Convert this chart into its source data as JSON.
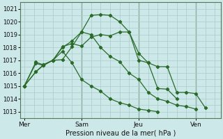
{
  "background_color": "#cce8e8",
  "grid_color": "#aacccc",
  "line_color": "#2a6b2a",
  "xlabel": "Pression niveau de la mer( hPa )",
  "ylim": [
    1012.5,
    1021.5
  ],
  "yticks": [
    1013,
    1014,
    1015,
    1016,
    1017,
    1018,
    1019,
    1020,
    1021
  ],
  "day_labels": [
    "Mer",
    "Sam",
    "Jeu",
    "Ven"
  ],
  "day_positions": [
    0,
    3,
    6,
    9
  ],
  "xlim": [
    -0.2,
    10.3
  ],
  "series": [
    {
      "x": [
        0,
        0.6,
        1.0,
        1.5,
        2.0,
        2.5,
        3.0,
        3.5,
        4.0,
        4.5,
        5.0,
        5.5,
        6.0,
        6.5,
        7.0,
        7.5,
        8.0,
        8.5,
        9.0,
        9.5,
        10.0
      ],
      "y": [
        1015.0,
        1016.1,
        1016.65,
        1017.0,
        1017.05,
        1018.05,
        1019.2,
        1020.5,
        1020.55,
        1020.5,
        1020.0,
        1019.2,
        1017.0,
        1016.8,
        1014.8,
        1014.75,
        1014.0,
        null,
        null,
        null,
        null
      ]
    },
    {
      "x": [
        0,
        0.6,
        1.0,
        1.5,
        2.0,
        2.5,
        3.0,
        3.5,
        4.0,
        4.5,
        5.0,
        5.5,
        6.0,
        6.5,
        7.0,
        7.5,
        8.0,
        8.5,
        9.0,
        9.5,
        10.0
      ],
      "y": [
        1015.0,
        1016.85,
        1016.65,
        1017.0,
        1018.05,
        1018.3,
        1018.1,
        1018.8,
        1019.0,
        1018.9,
        1019.2,
        1019.2,
        1017.55,
        1016.8,
        1016.5,
        1016.5,
        1014.5,
        1014.5,
        1014.4,
        1013.3,
        null
      ]
    },
    {
      "x": [
        0,
        0.6,
        1.0,
        1.5,
        2.0,
        2.5,
        3.0,
        3.5,
        4.0,
        4.5,
        5.0,
        5.5,
        6.0,
        6.5,
        7.0,
        7.5,
        8.0,
        8.5,
        9.0,
        9.5,
        10.0
      ],
      "y": [
        1015.0,
        1016.75,
        1016.6,
        1017.0,
        1018.0,
        1018.5,
        1019.2,
        1019.0,
        1018.0,
        1017.3,
        1016.9,
        1016.0,
        1015.5,
        1014.5,
        1014.0,
        1013.8,
        1013.5,
        1013.4,
        1013.2,
        null,
        null
      ]
    },
    {
      "x": [
        0,
        0.6,
        1.0,
        1.5,
        2.0,
        2.5,
        3.0,
        3.5,
        4.0,
        4.5,
        5.0,
        5.5,
        6.0,
        6.5,
        7.0,
        7.5,
        8.0,
        8.5,
        9.0,
        9.5,
        10.0
      ],
      "y": [
        1015.0,
        1016.1,
        1016.6,
        1017.0,
        1017.7,
        1016.8,
        1015.5,
        1015.0,
        1014.6,
        1014.0,
        1013.7,
        1013.5,
        1013.2,
        1013.1,
        1013.0,
        null,
        null,
        null,
        null,
        null,
        null
      ]
    }
  ]
}
